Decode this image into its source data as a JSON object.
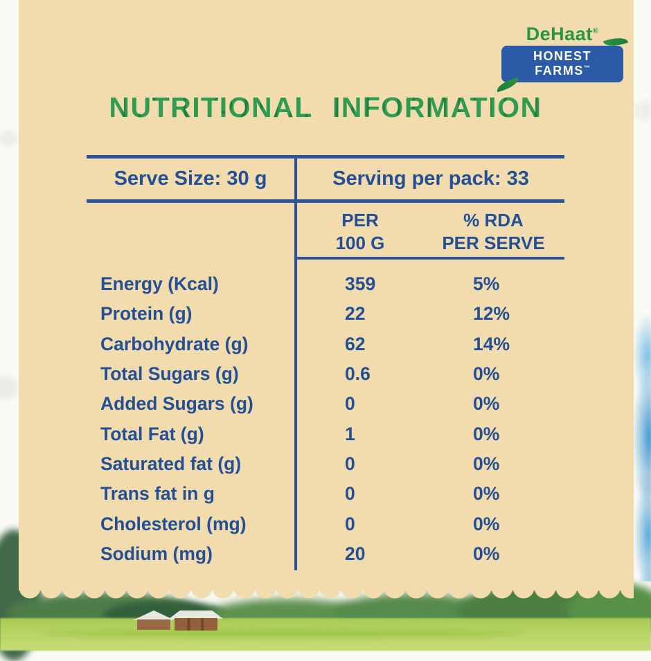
{
  "brand": {
    "name": "DeHaat",
    "registered_mark": "®",
    "banner": "HONEST FARMS",
    "trademark": "™"
  },
  "title": "NUTRITIONAL INFORMATION",
  "table": {
    "serve_size": "Serve Size: 30 g",
    "serving_per_pack": "Serving per pack: 33",
    "columns": {
      "per100_line1": "PER",
      "per100_line2": "100 G",
      "rda_line1": "% RDA",
      "rda_line2": "PER SERVE"
    },
    "rows": [
      {
        "label": "Energy (Kcal)",
        "per100": "359",
        "rda": "5%"
      },
      {
        "label": "Protein (g)",
        "per100": "22",
        "rda": "12%"
      },
      {
        "label": "Carbohydrate (g)",
        "per100": "62",
        "rda": "14%"
      },
      {
        "label": "Total Sugars (g)",
        "per100": "0.6",
        "rda": "0%"
      },
      {
        "label": "Added Sugars (g)",
        "per100": "0",
        "rda": "0%"
      },
      {
        "label": "Total Fat (g)",
        "per100": "1",
        "rda": "0%"
      },
      {
        "label": "Saturated fat (g)",
        "per100": "0",
        "rda": "0%"
      },
      {
        "label": "Trans fat in g",
        "per100": "0",
        "rda": "0%"
      },
      {
        "label": "Cholesterol (mg)",
        "per100": "0",
        "rda": "0%"
      },
      {
        "label": "Sodium (mg)",
        "per100": "20",
        "rda": "0%"
      }
    ]
  },
  "colors": {
    "panel_beige": "#f2dcad",
    "text_blue": "#234f96",
    "title_green": "#2f9c52",
    "logo_green": "#2a9447",
    "banner_blue": "#2b5aa7"
  }
}
